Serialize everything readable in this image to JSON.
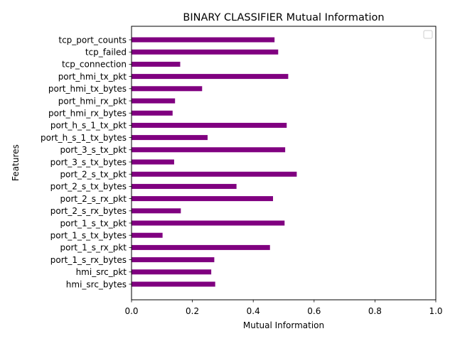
{
  "chart_data": {
    "type": "bar",
    "orientation": "horizontal",
    "title": "BINARY CLASSIFIER Mutual Information",
    "xlabel": "Mutual Information",
    "ylabel": "Features",
    "xlim": [
      0.0,
      1.0
    ],
    "xticks": [
      "0.0",
      "0.2",
      "0.4",
      "0.6",
      "0.8",
      "1.0"
    ],
    "grid": false,
    "legend": "top-right, empty",
    "bar_color": "#800080",
    "categories": [
      "hmi_src_bytes",
      "hmi_src_pkt",
      "port_1_s_rx_bytes",
      "port_1_s_rx_pkt",
      "port_1_s_tx_bytes",
      "port_1_s_tx_pkt",
      "port_2_s_rx_bytes",
      "port_2_s_rx_pkt",
      "port_2_s_tx_bytes",
      "port_2_s_tx_pkt",
      "port_3_s_tx_bytes",
      "port_3_s_tx_pkt",
      "port_h_s_1_tx_bytes",
      "port_h_s_1_tx_pkt",
      "port_hmi_rx_bytes",
      "port_hmi_rx_pkt",
      "port_hmi_tx_bytes",
      "port_hmi_tx_pkt",
      "tcp_connection",
      "tcp_failed",
      "tcp_port_counts"
    ],
    "values": [
      0.275,
      0.262,
      0.272,
      0.455,
      0.102,
      0.503,
      0.162,
      0.465,
      0.345,
      0.543,
      0.14,
      0.505,
      0.25,
      0.51,
      0.135,
      0.143,
      0.232,
      0.515,
      0.16,
      0.482,
      0.47
    ]
  }
}
